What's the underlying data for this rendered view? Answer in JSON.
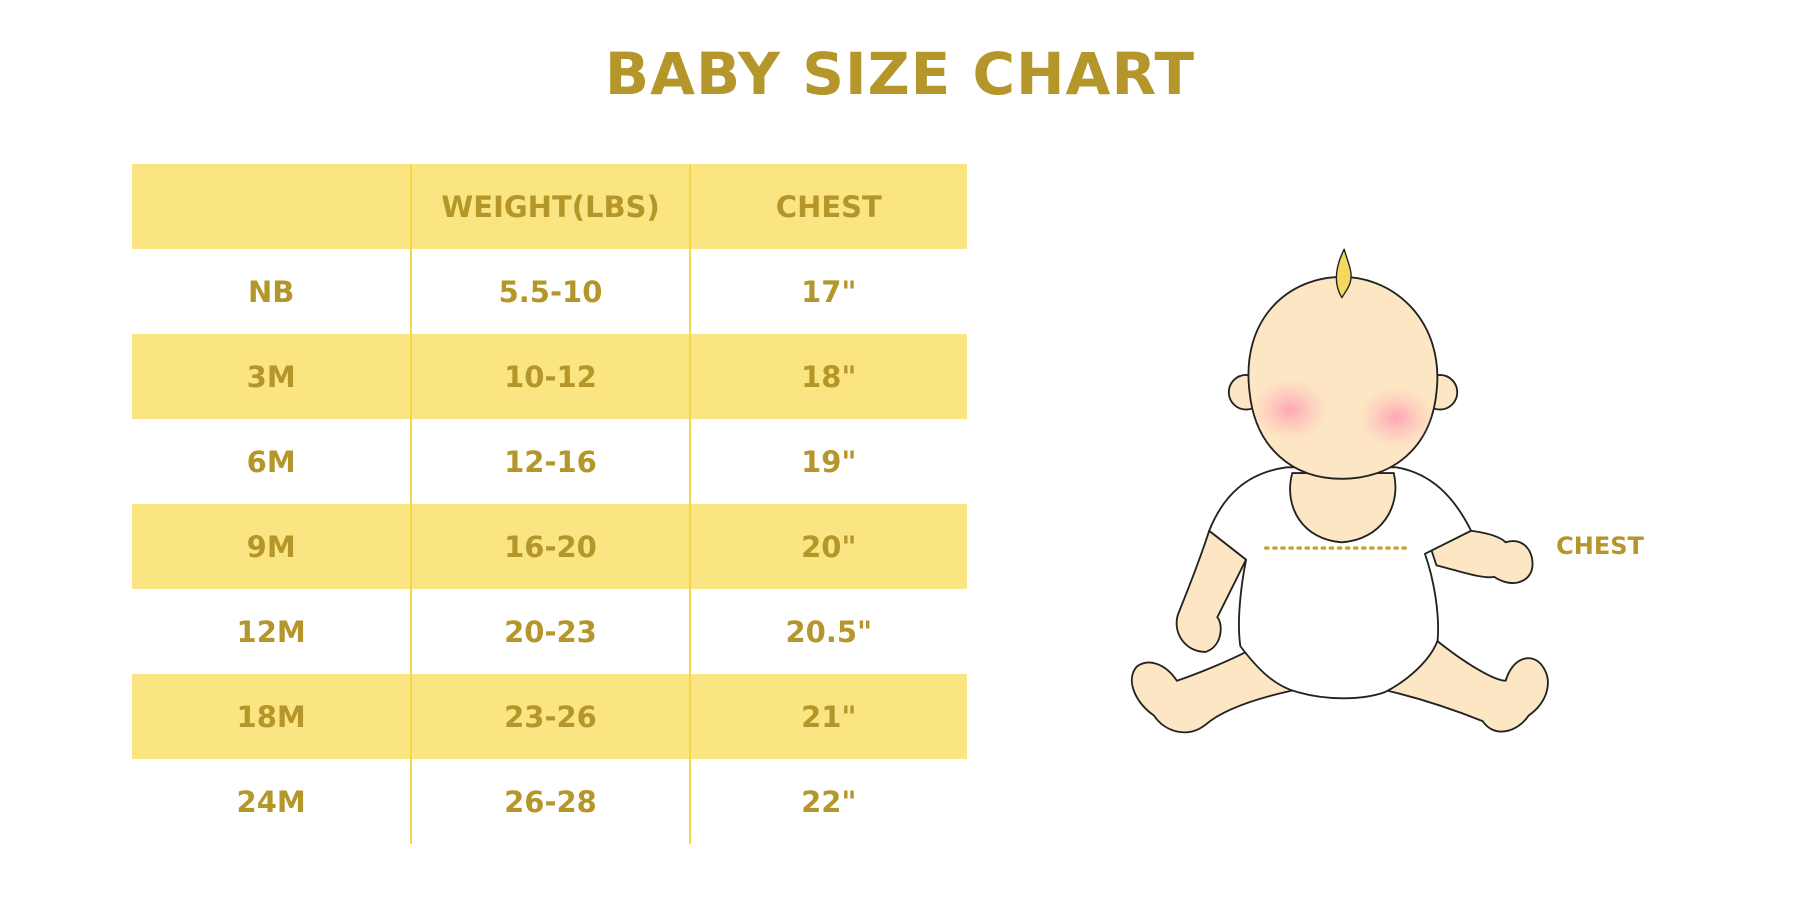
{
  "header": {
    "title": "BABY SIZE CHART"
  },
  "table": {
    "columns": [
      "WEIGHT(LBS)",
      "CHEST"
    ],
    "rows": [
      [
        "NB",
        "5.5-10",
        "17\""
      ],
      [
        "3M",
        "10-12",
        "18\""
      ],
      [
        "6M",
        "12-16",
        "19\""
      ],
      [
        "9M",
        "16-20",
        "20\""
      ],
      [
        "12M",
        "20-23",
        "20.5\""
      ],
      [
        "18M",
        "23-26",
        "21\""
      ],
      [
        "24M",
        "26-28",
        "22\""
      ]
    ]
  },
  "illustration": {
    "label": "CHEST"
  }
}
